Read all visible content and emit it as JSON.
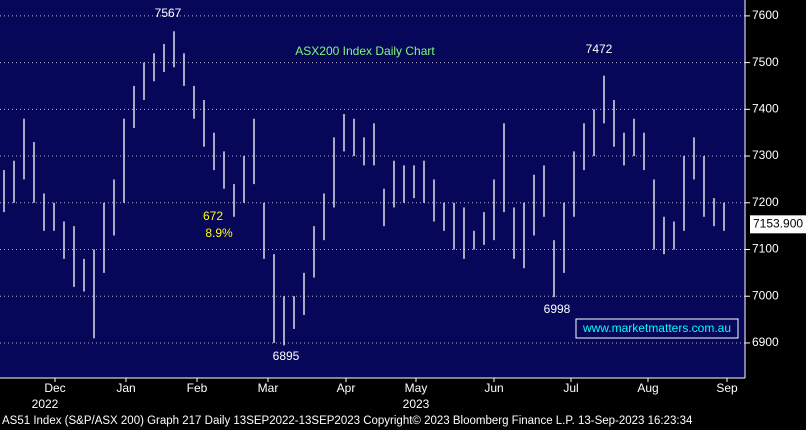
{
  "chart_data": {
    "type": "hilo",
    "title": "ASX200 Index Daily Chart",
    "high": [
      7270,
      7290,
      7380,
      7330,
      7220,
      7200,
      7160,
      7150,
      7080,
      7100,
      7200,
      7250,
      7380,
      7450,
      7500,
      7520,
      7540,
      7567,
      7520,
      7450,
      7420,
      7350,
      7310,
      7240,
      7300,
      7380,
      7200,
      7090,
      7000,
      7000,
      7050,
      7150,
      7220,
      7340,
      7390,
      7380,
      7340,
      7370,
      7230,
      7290,
      7280,
      7280,
      7290,
      7250,
      7200,
      7200,
      7190,
      7140,
      7180,
      7250,
      7370,
      7190,
      7200,
      7260,
      7280,
      7120,
      7200,
      7310,
      7370,
      7400,
      7472,
      7420,
      7350,
      7380,
      7350,
      7250,
      7170,
      7160,
      7300,
      7340,
      7300,
      7210,
      7200
    ],
    "low": [
      7180,
      7200,
      7250,
      7200,
      7140,
      7140,
      7080,
      7020,
      7010,
      6910,
      7050,
      7130,
      7200,
      7360,
      7420,
      7460,
      7480,
      7490,
      7450,
      7380,
      7320,
      7270,
      7230,
      7170,
      7200,
      7240,
      7080,
      6900,
      6895,
      6930,
      6960,
      7040,
      7120,
      7190,
      7310,
      7300,
      7280,
      7280,
      7150,
      7190,
      7200,
      7210,
      7200,
      7160,
      7140,
      7100,
      7080,
      7100,
      7110,
      7120,
      7180,
      7080,
      7060,
      7130,
      7170,
      6998,
      7050,
      7170,
      7270,
      7300,
      7370,
      7320,
      7280,
      7300,
      7270,
      7100,
      7090,
      7100,
      7140,
      7250,
      7170,
      7150,
      7140
    ],
    "color": "#ffffff",
    "xlim": [
      -0.4,
      74.1
    ],
    "xticks": [
      {
        "value": 5.1,
        "label": "Dec"
      },
      {
        "value": 12.2,
        "label": "Jan"
      },
      {
        "value": 19.3,
        "label": "Feb"
      },
      {
        "value": 26.4,
        "label": "Mar"
      },
      {
        "value": 34.2,
        "label": "Apr"
      },
      {
        "value": 41.2,
        "label": "May"
      },
      {
        "value": 49,
        "label": "Jun"
      },
      {
        "value": 56.7,
        "label": "Jul"
      },
      {
        "value": 64.4,
        "label": "Aug"
      },
      {
        "value": 72.3,
        "label": "Sep"
      }
    ],
    "year_labels": [
      "2022",
      "2023"
    ],
    "ylim": [
      6825,
      7634
    ],
    "yticks": [
      6900,
      7000,
      7100,
      7200,
      7300,
      7400,
      7500,
      7600
    ],
    "grid": true,
    "last_price": {
      "value": 7153.9,
      "label": "7153.900"
    },
    "annotations": [
      "7567",
      "7472",
      "6895",
      "6998",
      "672",
      "8.9%"
    ],
    "watermark": "www.marketmatters.com.au",
    "footer": "AS51 Index (S&P/ASX 200) Graph 217  Daily 13SEP2022-13SEP2023  Copyright© 2023 Bloomberg Finance L.P.   13-Sep-2023 16:23:34"
  }
}
